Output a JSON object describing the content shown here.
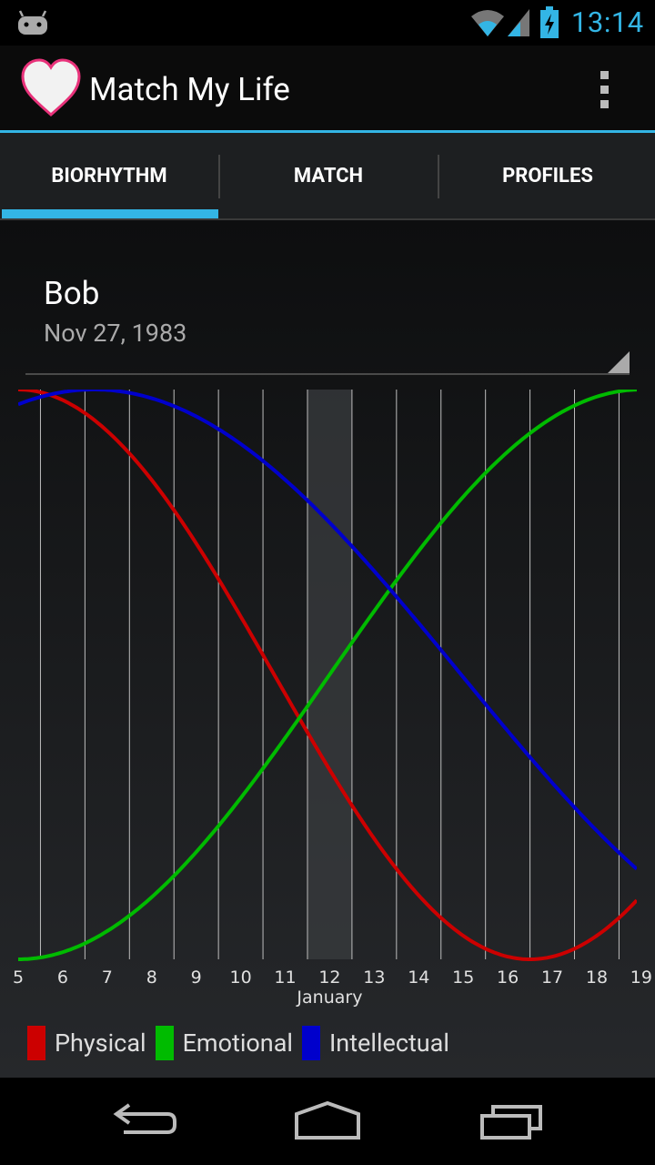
{
  "status_bar": {
    "time": "13:14",
    "icons": [
      "android-debug-icon",
      "wifi-icon",
      "signal-icon",
      "battery-charging-icon"
    ],
    "accent": "#33b5e5"
  },
  "app_bar": {
    "title": "Match My Life",
    "logo": "heart-logo",
    "menu": "overflow-menu-icon"
  },
  "tabs": [
    {
      "label": "BIORHYTHM",
      "selected": true
    },
    {
      "label": "MATCH",
      "selected": false
    },
    {
      "label": "PROFILES",
      "selected": false
    }
  ],
  "profile": {
    "name": "Bob",
    "birthdate": "Nov 27, 1983"
  },
  "chart_data": {
    "type": "line",
    "xlabel": "January",
    "x": [
      5,
      6,
      7,
      8,
      9,
      10,
      11,
      12,
      13,
      14,
      15,
      16,
      17,
      18,
      19
    ],
    "x_tick_labels": [
      "5",
      "6",
      "7",
      "8",
      "9",
      "10",
      "11",
      "12",
      "13",
      "14",
      "15",
      "16",
      "17",
      "18",
      "19"
    ],
    "xlim": [
      5.0,
      18.9
    ],
    "ylim": [
      -1,
      1
    ],
    "highlight_day": 12,
    "grid": "vertical",
    "legend_position": "bottom",
    "series": [
      {
        "name": "Physical",
        "color": "#cc0000",
        "period": 23,
        "peak_day": 5.0
      },
      {
        "name": "Emotional",
        "color": "#00bb00",
        "period": 28,
        "peak_day": 19.0
      },
      {
        "name": "Intellectual",
        "color": "#0000cc",
        "period": 33,
        "peak_day": 6.7
      }
    ]
  },
  "legend": [
    {
      "label": "Physical",
      "color": "#cc0000"
    },
    {
      "label": "Emotional",
      "color": "#00bb00"
    },
    {
      "label": "Intellectual",
      "color": "#0000cc"
    }
  ],
  "nav_bar": {
    "buttons": [
      "back-icon",
      "home-icon",
      "recent-apps-icon"
    ]
  }
}
